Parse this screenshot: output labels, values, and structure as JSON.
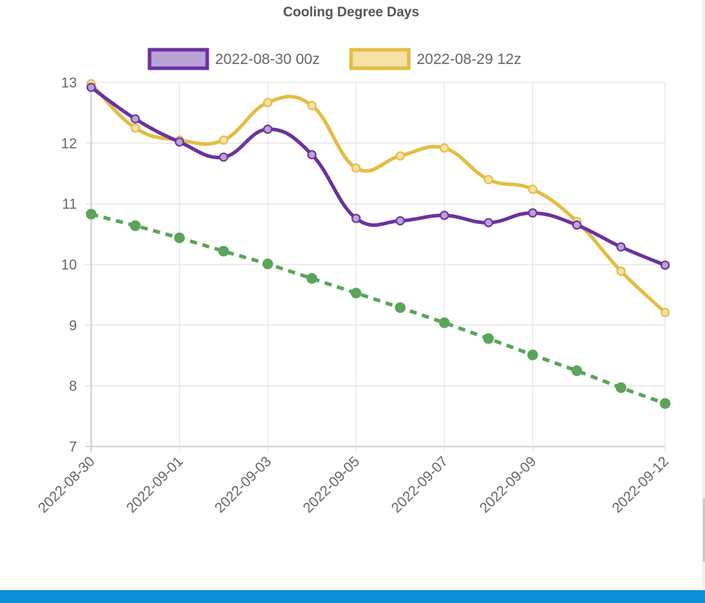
{
  "chart_data": {
    "type": "line",
    "title": "Cooling Degree Days",
    "x": [
      "2022-08-30",
      "2022-08-31",
      "2022-09-01",
      "2022-09-02",
      "2022-09-03",
      "2022-09-04",
      "2022-09-05",
      "2022-09-06",
      "2022-09-07",
      "2022-09-08",
      "2022-09-09",
      "2022-09-10",
      "2022-09-11",
      "2022-09-12"
    ],
    "x_tick_labels": [
      "2022-08-30",
      "2022-09-01",
      "2022-09-03",
      "2022-09-05",
      "2022-09-07",
      "2022-09-09",
      "2022-09-12"
    ],
    "ylim": [
      7,
      13
    ],
    "y_ticks": [
      7,
      8,
      9,
      10,
      11,
      12,
      13
    ],
    "grid": true,
    "legend_position": "top-center",
    "series": [
      {
        "name": "2022-08-30 00z",
        "color": "#6a329f",
        "fill": "#b9a3d6",
        "values": [
          12.92,
          12.4,
          12.02,
          11.77,
          12.23,
          11.81,
          10.76,
          10.72,
          10.81,
          10.69,
          10.85,
          10.65,
          10.29,
          9.99
        ]
      },
      {
        "name": "2022-08-29 12z",
        "color": "#e3bd45",
        "fill": "#f5e2a6",
        "values": [
          12.98,
          12.25,
          12.05,
          12.05,
          12.67,
          12.62,
          11.59,
          11.79,
          11.92,
          11.4,
          11.24,
          10.71,
          9.89,
          9.21
        ]
      },
      {
        "name": "",
        "color": "#5aa55a",
        "dashed": true,
        "in_legend": false,
        "values": [
          10.83,
          10.64,
          10.44,
          10.22,
          10.01,
          9.77,
          9.53,
          9.29,
          9.04,
          8.78,
          8.51,
          8.25,
          7.97,
          7.71
        ]
      }
    ]
  }
}
